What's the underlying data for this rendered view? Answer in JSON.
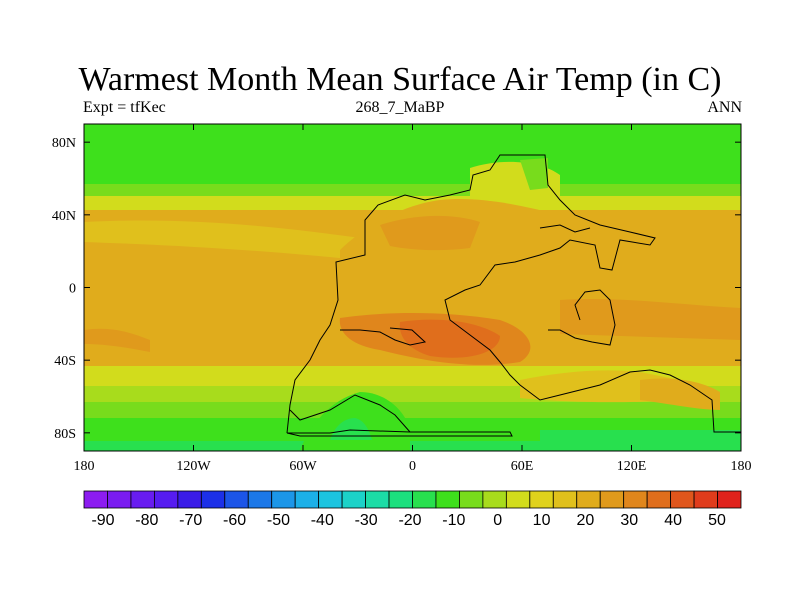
{
  "title": "Warmest Month Mean Surface Air Temp (in C)",
  "left_string": "Expt = tfKec",
  "center_string": "268_7_MaBP",
  "right_string": "ANN",
  "map": {
    "lon_range": [
      -180,
      180
    ],
    "lat_range": [
      -90,
      90
    ],
    "lon_ticks": [
      {
        "label": "180",
        "value": -180
      },
      {
        "label": "120W",
        "value": -120
      },
      {
        "label": "60W",
        "value": -60
      },
      {
        "label": "0",
        "value": 0
      },
      {
        "label": "60E",
        "value": 60
      },
      {
        "label": "120E",
        "value": 120
      },
      {
        "label": "180",
        "value": 180
      }
    ],
    "lat_ticks": [
      {
        "label": "80N",
        "value": 80
      },
      {
        "label": "40N",
        "value": 40
      },
      {
        "label": "0",
        "value": 0
      },
      {
        "label": "40S",
        "value": -40
      },
      {
        "label": "80S",
        "value": -80
      }
    ]
  },
  "colorbar": {
    "labels": [
      "-90",
      "-80",
      "-70",
      "-60",
      "-50",
      "-40",
      "-30",
      "-20",
      "-10",
      "0",
      "10",
      "20",
      "30",
      "40",
      "50"
    ],
    "colors": [
      "#8c1cf0",
      "#7a1cf0",
      "#681cf0",
      "#561cf0",
      "#3a1ce8",
      "#1c30e8",
      "#1c55e8",
      "#1c78e8",
      "#1c96e8",
      "#1cb0e8",
      "#1cc4e0",
      "#1cd2c8",
      "#1cdca6",
      "#1ce07e",
      "#28e04e",
      "#3ee01c",
      "#78dc1c",
      "#a8dc1c",
      "#d2dc1c",
      "#e0d21c",
      "#e0c01c",
      "#e0ac1c",
      "#e09a1c",
      "#e0861c",
      "#e06e1c",
      "#e0561c",
      "#e03c1c",
      "#e0221c"
    ]
  }
}
